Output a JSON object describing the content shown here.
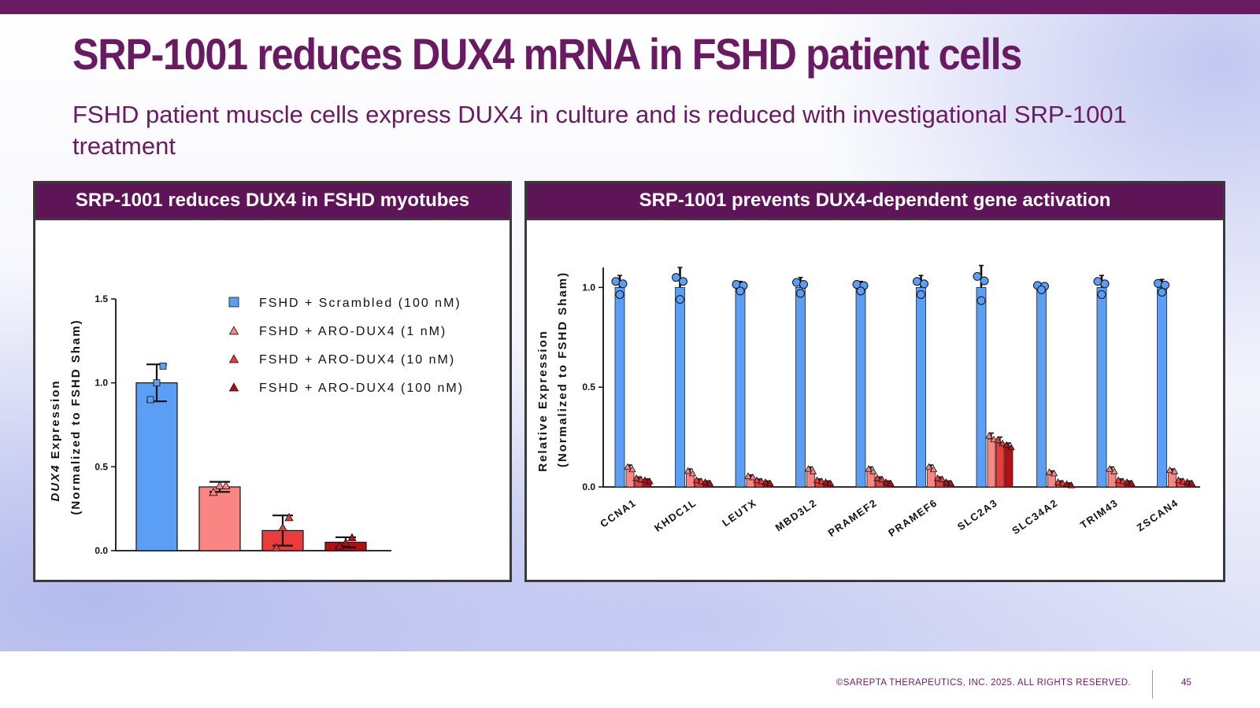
{
  "slide": {
    "title": "SRP-1001 reduces DUX4 mRNA in FSHD patient cells",
    "subtitle": "FSHD patient muscle cells express DUX4 in culture and is reduced with investigational SRP-1001 treatment"
  },
  "footer": {
    "copyright": "©SAREPTA THERAPEUTICS, INC. 2025.  ALL RIGHTS RESERVED.",
    "page_number": "45"
  },
  "colors": {
    "brand_purple": "#6a1a63",
    "panel_header": "#5e1558",
    "scrambled": "#5b9ef5",
    "aro_1nM": "#f98683",
    "aro_10nM": "#ec3b3b",
    "aro_100nM": "#b30f18"
  },
  "left_panel": {
    "header": "SRP-1001 reduces DUX4 in FSHD myotubes"
  },
  "right_panel": {
    "header": "SRP-1001 prevents DUX4-dependent gene activation"
  },
  "chart_data": [
    {
      "type": "bar",
      "title": "SRP-1001 reduces DUX4 in FSHD myotubes",
      "ylabel_italic": "DUX4",
      "ylabel_rest": " Expression",
      "ylabel2": "(Normalized to FSHD Sham)",
      "ylim": [
        0,
        1.5
      ],
      "yticks": [
        "0.0",
        "0.5",
        "1.0",
        "1.5"
      ],
      "legend_position": "top-right",
      "legend": [
        {
          "label": "FSHD + Scrambled (100 nM)",
          "marker": "square",
          "color": "#5b9ef5"
        },
        {
          "label": "FSHD + ARO-DUX4 (1 nM)",
          "marker": "triangle",
          "color": "#f98683"
        },
        {
          "label": "FSHD + ARO-DUX4 (10 nM)",
          "marker": "triangle",
          "color": "#ec3b3b"
        },
        {
          "label": "FSHD + ARO-DUX4 (100 nM)",
          "marker": "triangle",
          "color": "#b30f18"
        }
      ],
      "series": [
        {
          "name": "FSHD + Scrambled (100 nM)",
          "value": 1.0,
          "error": 0.11,
          "points": [
            0.9,
            1.0,
            1.1
          ]
        },
        {
          "name": "FSHD + ARO-DUX4 (1 nM)",
          "value": 0.38,
          "error": 0.03,
          "points": [
            0.35,
            0.39,
            0.39
          ]
        },
        {
          "name": "FSHD + ARO-DUX4 (10 nM)",
          "value": 0.12,
          "error": 0.09,
          "points": [
            0.02,
            0.14,
            0.2
          ]
        },
        {
          "name": "FSHD + ARO-DUX4 (100 nM)",
          "value": 0.05,
          "error": 0.03,
          "points": [
            0.03,
            0.05,
            0.08
          ]
        }
      ]
    },
    {
      "type": "bar",
      "title": "SRP-1001 prevents DUX4-dependent gene activation",
      "ylabel": "Relative Expression",
      "ylabel2": "(Normalized to FSHD Sham)",
      "ylim": [
        0,
        1.1
      ],
      "yticks": [
        "0.0",
        "0.5",
        "1.0"
      ],
      "categories": [
        "CCNA1",
        "KHDC1L",
        "LEUTX",
        "MBD3L2",
        "PRAMEF2",
        "PRAMEF6",
        "SLC2A3",
        "SLC34A2",
        "TRIM43",
        "ZSCAN4"
      ],
      "series": [
        {
          "name": "FSHD + Scrambled (100 nM)",
          "values": [
            1.0,
            1.0,
            1.0,
            1.0,
            1.0,
            1.0,
            1.0,
            1.0,
            1.0,
            1.0
          ],
          "errors": [
            0.06,
            0.1,
            0.03,
            0.05,
            0.03,
            0.06,
            0.11,
            0.02,
            0.06,
            0.04
          ]
        },
        {
          "name": "FSHD + ARO-DUX4 (1 nM)",
          "values": [
            0.09,
            0.07,
            0.05,
            0.08,
            0.08,
            0.09,
            0.24,
            0.07,
            0.08,
            0.08
          ],
          "errors": [
            0.02,
            0.02,
            0.01,
            0.02,
            0.02,
            0.02,
            0.03,
            0.01,
            0.02,
            0.01
          ]
        },
        {
          "name": "FSHD + ARO-DUX4 (10 nM)",
          "values": [
            0.04,
            0.03,
            0.03,
            0.03,
            0.04,
            0.04,
            0.22,
            0.02,
            0.03,
            0.03
          ],
          "errors": [
            0.01,
            0.01,
            0.01,
            0.01,
            0.01,
            0.01,
            0.03,
            0.01,
            0.01,
            0.01
          ]
        },
        {
          "name": "FSHD + ARO-DUX4 (100 nM)",
          "values": [
            0.03,
            0.02,
            0.02,
            0.02,
            0.02,
            0.02,
            0.2,
            0.01,
            0.02,
            0.02
          ],
          "errors": [
            0.01,
            0.01,
            0.01,
            0.01,
            0.01,
            0.01,
            0.02,
            0.01,
            0.01,
            0.01
          ]
        }
      ]
    }
  ]
}
